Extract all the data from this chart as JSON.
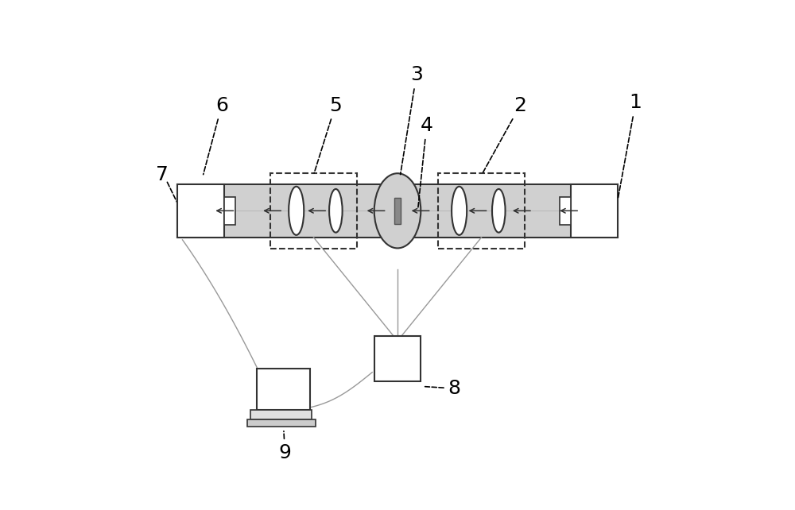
{
  "bg_color": "#ffffff",
  "tube_color": "#d0d0d0",
  "tube_border": "#333333",
  "lens_border": "#333333",
  "box_border": "#333333",
  "dashed_color": "#333333",
  "line_color": "#999999",
  "figsize": [
    10.0,
    6.42
  ],
  "dpi": 100
}
